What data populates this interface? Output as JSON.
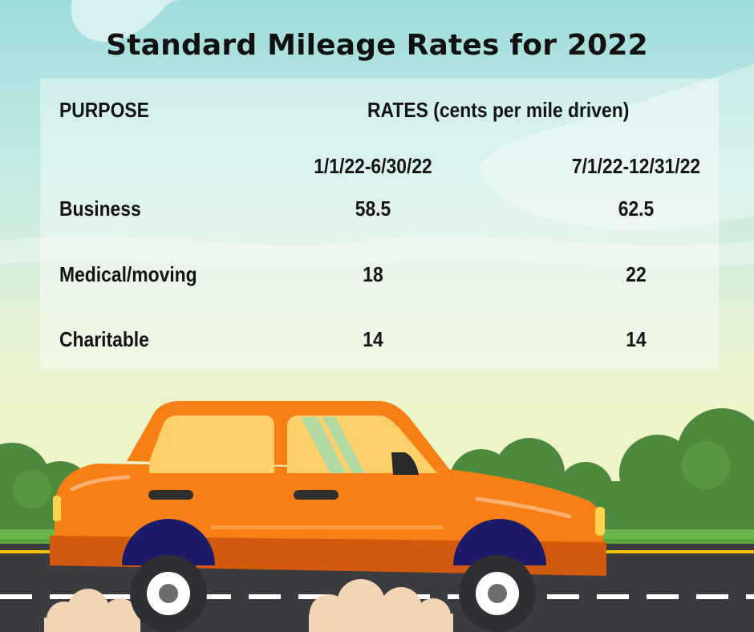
{
  "title": "Standard Mileage Rates for 2022",
  "table": {
    "headers": {
      "purpose": "PURPOSE",
      "rates": "RATES (cents per mile driven)"
    },
    "periods": [
      "1/1/22-6/30/22",
      "7/1/22-12/31/22"
    ],
    "rows": [
      {
        "purpose": "Business",
        "rate_h1": "58.5",
        "rate_h2": "62.5"
      },
      {
        "purpose": "Medical/moving",
        "rate_h1": "18",
        "rate_h2": "22"
      },
      {
        "purpose": "Charitable",
        "rate_h1": "14",
        "rate_h2": "14"
      }
    ]
  },
  "illustration": {
    "car_color": "#f77f14",
    "road_color": "#3b3b40",
    "sky_color": "#9fdcdc",
    "bush_color": "#4e8a3d"
  }
}
